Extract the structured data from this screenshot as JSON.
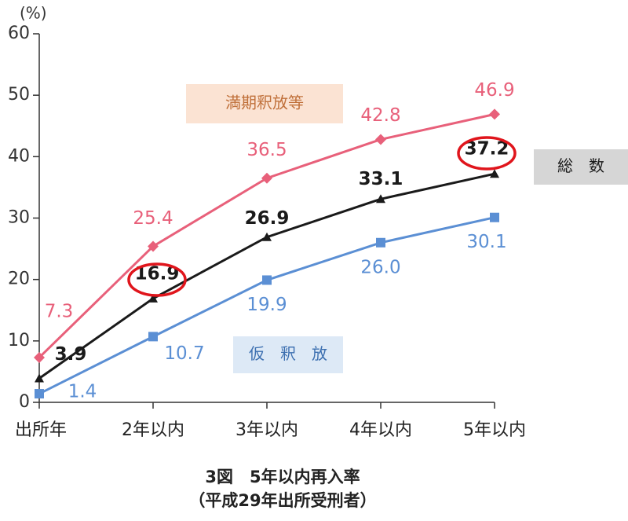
{
  "chart_data": {
    "type": "line",
    "title": "3図　5年以内再入率",
    "subtitle": "（平成29年出所受刑者）",
    "y_label": "(%)",
    "categories": [
      "出所年",
      "2年以内",
      "3年以内",
      "4年以内",
      "5年以内"
    ],
    "series": [
      {
        "name": "満期釈放等",
        "color": "#e8607a",
        "marker": "diamond",
        "legend_bg": "#fbe3d3",
        "legend_color": "#c0703a",
        "values": [
          7.3,
          25.4,
          36.5,
          42.8,
          46.9
        ],
        "value_labels": [
          "7.3",
          "25.4",
          "36.5",
          "42.8",
          "46.9"
        ]
      },
      {
        "name": "総　数",
        "color": "#1a1a1a",
        "marker": "triangle",
        "legend_bg": "#d6d6d6",
        "legend_color": "#1a1a1a",
        "values": [
          3.9,
          16.9,
          26.9,
          33.1,
          37.2
        ],
        "value_labels": [
          "3.9",
          "16.9",
          "26.9",
          "33.1",
          "37.2"
        ]
      },
      {
        "name": "仮　釈　放",
        "color": "#5b8fd4",
        "marker": "square",
        "legend_bg": "#dde9f6",
        "legend_color": "#3c6fb0",
        "values": [
          1.4,
          10.7,
          19.9,
          26.0,
          30.1
        ],
        "value_labels": [
          "1.4",
          "10.7",
          "19.9",
          "26.0",
          "30.1"
        ]
      }
    ],
    "ylim": [
      0,
      60
    ],
    "yticks": [
      0,
      10,
      20,
      30,
      40,
      50,
      60
    ]
  }
}
